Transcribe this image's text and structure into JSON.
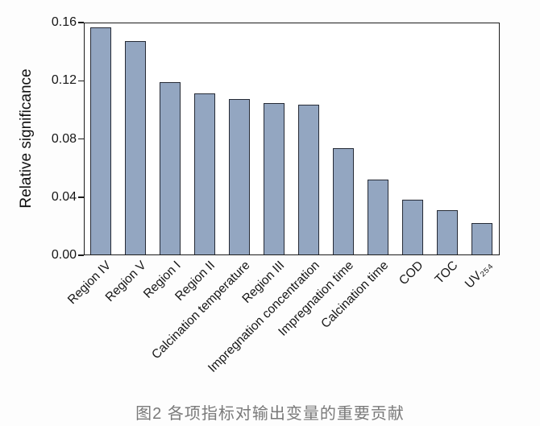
{
  "figure": {
    "caption": "图2  各项指标对输出变量的重要贡献"
  },
  "chart_data": {
    "type": "bar",
    "title": "",
    "xlabel": "",
    "ylabel": "Relative significance",
    "ylim": [
      0,
      0.16
    ],
    "yticks": [
      0.0,
      0.04,
      0.08,
      0.12,
      0.16
    ],
    "ytick_labels": [
      "0.00",
      "0.04",
      "0.08",
      "0.12",
      "0.16"
    ],
    "categories": [
      "Region IV",
      "Region V",
      "Region I",
      "Region II",
      "Calcination temperature",
      "Region III",
      "Impregnation concentration",
      "Impregnation time",
      "Calcination time",
      "COD",
      "TOC",
      "UV₂₅₄"
    ],
    "values": [
      0.158,
      0.148,
      0.12,
      0.112,
      0.108,
      0.105,
      0.104,
      0.074,
      0.052,
      0.038,
      0.031,
      0.022
    ],
    "grid": false,
    "legend": null,
    "bar_color": "#93a6c1",
    "bar_border_color": "#262b36",
    "axis_color": "#1c1c1c",
    "caption_color": "#7a7a7a"
  }
}
